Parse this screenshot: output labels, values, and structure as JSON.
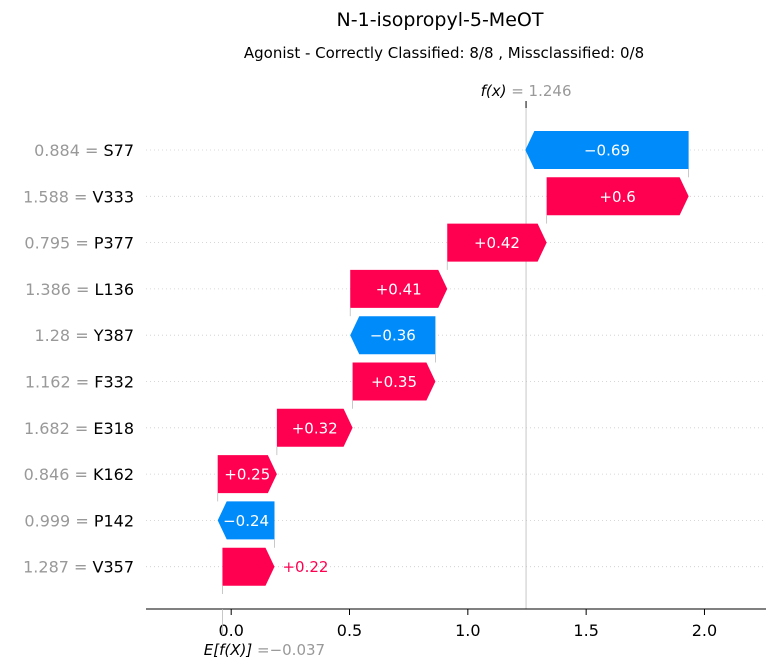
{
  "chart_data": {
    "type": "waterfall",
    "title": "N-1-isopropyl-5-MeOT",
    "subtitle": "Agonist - Correctly Classified: 8/8 , Missclassified: 0/8",
    "fx": {
      "label": "f(x)",
      "eq": "=",
      "value": "1.246",
      "x": 1.246
    },
    "ex": {
      "label": "E[f(X)]",
      "eq": "=",
      "value": "−0.037",
      "x": -0.037
    },
    "xlim": [
      -0.36,
      2.26
    ],
    "xticks": [
      {
        "value": 0.0,
        "label": "0.0"
      },
      {
        "value": 0.5,
        "label": "0.5"
      },
      {
        "value": 1.0,
        "label": "1.0"
      },
      {
        "value": 1.5,
        "label": "1.5"
      },
      {
        "value": 2.0,
        "label": "2.0"
      }
    ],
    "colors": {
      "positive": "#ff0051",
      "negative": "#008bfb",
      "gray": "#999999"
    },
    "features": [
      {
        "feature_value": "0.884",
        "eq": "=",
        "name": "S77",
        "shap": -0.69,
        "label": "−0.69"
      },
      {
        "feature_value": "1.588",
        "eq": "=",
        "name": "V333",
        "shap": 0.6,
        "label": "+0.6"
      },
      {
        "feature_value": "0.795",
        "eq": "=",
        "name": "P377",
        "shap": 0.42,
        "label": "+0.42"
      },
      {
        "feature_value": "1.386",
        "eq": "=",
        "name": "L136",
        "shap": 0.41,
        "label": "+0.41"
      },
      {
        "feature_value": "1.28",
        "eq": "=",
        "name": "Y387",
        "shap": -0.36,
        "label": "−0.36"
      },
      {
        "feature_value": "1.162",
        "eq": "=",
        "name": "F332",
        "shap": 0.35,
        "label": "+0.35"
      },
      {
        "feature_value": "1.682",
        "eq": "=",
        "name": "E318",
        "shap": 0.32,
        "label": "+0.32"
      },
      {
        "feature_value": "0.846",
        "eq": "=",
        "name": "K162",
        "shap": 0.25,
        "label": "+0.25"
      },
      {
        "feature_value": "0.999",
        "eq": "=",
        "name": "P142",
        "shap": -0.24,
        "label": "−0.24"
      },
      {
        "feature_value": "1.287",
        "eq": "=",
        "name": "V357",
        "shap": 0.22,
        "label": "+0.22"
      }
    ]
  }
}
